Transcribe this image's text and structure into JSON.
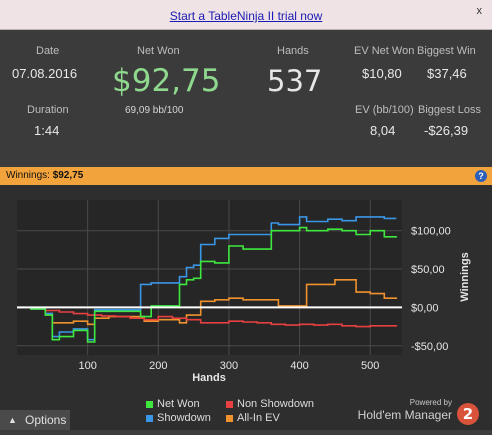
{
  "banner": {
    "link": "Start a TableNinja II trial now",
    "close": "x"
  },
  "stats": {
    "date_label": "Date",
    "date_value": "07.08.2016",
    "duration_label": "Duration",
    "duration_value": "1:44",
    "net_won_label": "Net Won",
    "net_won_value": "$92,75",
    "bb_per_100": "69,09 bb/100",
    "hands_label": "Hands",
    "hands_value": "537",
    "ev_net_won_label": "EV Net Won",
    "ev_net_won_value": "$10,80",
    "ev_bb_label": "EV (bb/100)",
    "ev_bb_value": "8,04",
    "biggest_win_label": "Biggest Win",
    "biggest_win_value": "$37,46",
    "biggest_loss_label": "Biggest Loss",
    "biggest_loss_value": "-$26,39"
  },
  "winnings_bar": {
    "label": "Winnings:",
    "value": "$92,75",
    "help": "?"
  },
  "chart_data": {
    "type": "line",
    "xlabel": "Hands",
    "ylabel": "Winnings",
    "xlim": [
      0,
      545
    ],
    "ylim": [
      -62,
      140
    ],
    "x_ticks": [
      100,
      200,
      300,
      400,
      500
    ],
    "x_tick_labels": [
      "100",
      "200",
      "300",
      "400",
      "500"
    ],
    "y_ticks": [
      100,
      50,
      0,
      -50
    ],
    "y_tick_labels": [
      "$100,00",
      "$50,00",
      "$0,00",
      "-$50,00"
    ],
    "grid": true,
    "series": [
      {
        "name": "Net Won",
        "color": "#3ee83e",
        "x": [
          0,
          20,
          40,
          50,
          60,
          80,
          100,
          110,
          130,
          170,
          175,
          190,
          230,
          240,
          250,
          260,
          280,
          300,
          320,
          360,
          370,
          400,
          410,
          440,
          460,
          480,
          500,
          520,
          537
        ],
        "y": [
          0,
          -2,
          -10,
          -42,
          -38,
          -30,
          -45,
          -5,
          -5,
          -5,
          -12,
          2,
          30,
          36,
          38,
          60,
          58,
          80,
          76,
          100,
          100,
          104,
          100,
          102,
          100,
          95,
          100,
          92,
          92.75
        ]
      },
      {
        "name": "Showdown",
        "color": "#3a96e6",
        "x": [
          0,
          20,
          40,
          50,
          60,
          80,
          100,
          110,
          130,
          170,
          175,
          190,
          230,
          240,
          250,
          260,
          280,
          300,
          320,
          360,
          370,
          400,
          410,
          440,
          460,
          480,
          500,
          520,
          537
        ],
        "y": [
          0,
          -2,
          -8,
          -38,
          -32,
          -28,
          -42,
          -3,
          -3,
          -3,
          30,
          32,
          40,
          52,
          55,
          82,
          90,
          95,
          95,
          110,
          108,
          118,
          112,
          115,
          113,
          118,
          118,
          116,
          116
        ]
      },
      {
        "name": "Non Showdown",
        "color": "#e84040",
        "x": [
          0,
          20,
          40,
          60,
          80,
          100,
          120,
          140,
          160,
          180,
          200,
          220,
          240,
          260,
          280,
          300,
          320,
          340,
          360,
          380,
          400,
          420,
          440,
          460,
          480,
          500,
          520,
          537
        ],
        "y": [
          0,
          -1,
          -4,
          -6,
          -8,
          -10,
          -11,
          -12,
          -14,
          -16,
          -12,
          -14,
          -16,
          -20,
          -20,
          -18,
          -19,
          -20,
          -22,
          -23,
          -22,
          -23,
          -22,
          -24,
          -25,
          -24,
          -24,
          -23
        ]
      },
      {
        "name": "All-In EV",
        "color": "#f0922e",
        "x": [
          0,
          20,
          40,
          50,
          60,
          80,
          100,
          110,
          130,
          170,
          180,
          200,
          230,
          240,
          260,
          280,
          300,
          320,
          360,
          370,
          400,
          410,
          440,
          450,
          470,
          480,
          500,
          520,
          537
        ],
        "y": [
          0,
          -2,
          -8,
          -20,
          -20,
          -18,
          -22,
          -14,
          -12,
          -12,
          -18,
          -16,
          -20,
          -10,
          8,
          10,
          12,
          10,
          10,
          2,
          2,
          30,
          30,
          36,
          36,
          20,
          18,
          12,
          11
        ]
      }
    ]
  },
  "legend": {
    "net_won": "Net Won",
    "non_showdown": "Non Showdown",
    "showdown": "Showdown",
    "all_in_ev": "All-In EV"
  },
  "footer": {
    "options": "Options",
    "powered_by": "Powered by",
    "brand": "Hold'em Manager",
    "logo_digit": "2"
  }
}
